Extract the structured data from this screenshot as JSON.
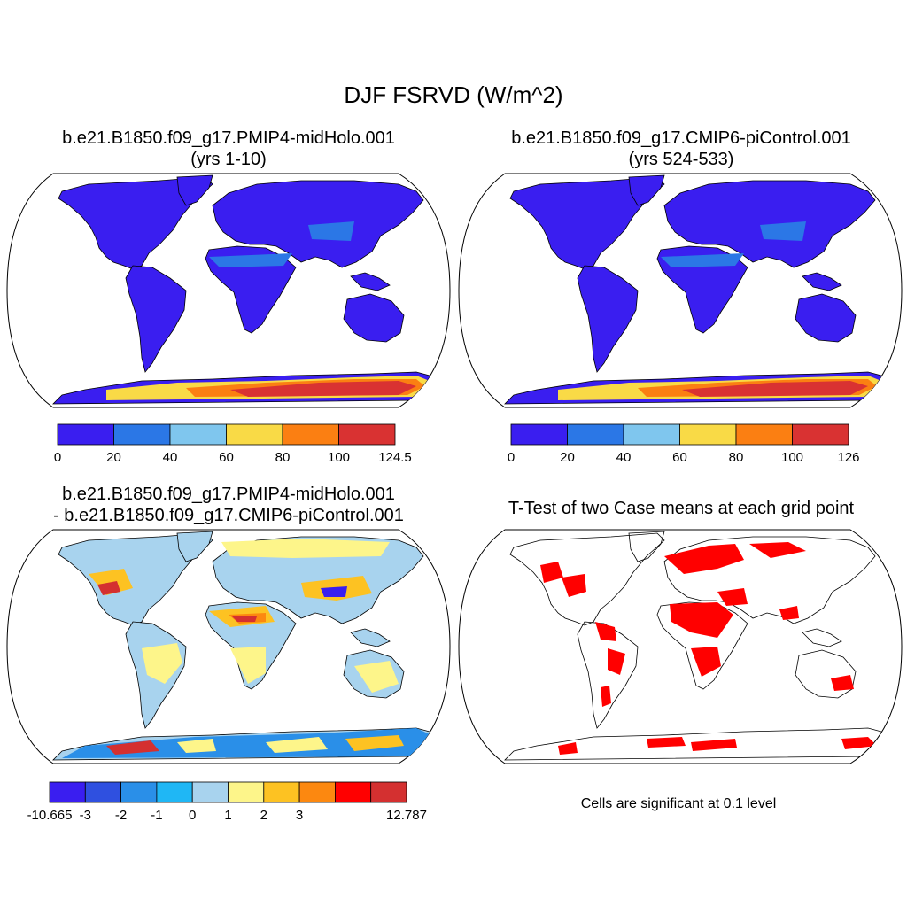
{
  "title": "DJF FSRVD (W/m^2)",
  "panels": [
    {
      "title_line1": "b.e21.B1850.f09_g17.PMIP4-midHolo.001",
      "title_line2": "(yrs 1-10)"
    },
    {
      "title_line1": "b.e21.B1850.f09_g17.CMIP6-piControl.001",
      "title_line2": "(yrs 524-533)"
    },
    {
      "title_line1": "b.e21.B1850.f09_g17.PMIP4-midHolo.001",
      "title_line2": "- b.e21.B1850.f09_g17.CMIP6-piControl.001"
    },
    {
      "title_line1": "T-Test of two Case means at each grid point",
      "title_line2": ""
    }
  ],
  "colorbars": [
    {
      "labels": [
        "0",
        "20",
        "40",
        "60",
        "80",
        "100",
        "124.5"
      ],
      "colors": [
        "#3a1ef0",
        "#2b77e6",
        "#7fc6ee",
        "#f9da46",
        "#fb7f12",
        "#d93232"
      ]
    },
    {
      "labels": [
        "0",
        "20",
        "40",
        "60",
        "80",
        "100",
        "126"
      ],
      "colors": [
        "#3a1ef0",
        "#2b77e6",
        "#7fc6ee",
        "#f9da46",
        "#fb7f12",
        "#d93232"
      ]
    },
    {
      "labels": [
        "-10.665",
        "-3",
        "-2",
        "-1",
        "0",
        "1",
        "2",
        "3",
        "",
        "",
        "12.787"
      ],
      "colors": [
        "#3a1ef0",
        "#2f50e0",
        "#2a8fe8",
        "#1fb7f5",
        "#a8d3ee",
        "#fdf58a",
        "#fdc222",
        "#fc8810",
        "#ff0000",
        "#d43030"
      ]
    }
  ],
  "significance_note": "Cells are significant at 0.1 level",
  "colors": {
    "land_low": "#3a1ef0",
    "significant": "#ff0000",
    "outline": "#000000"
  }
}
